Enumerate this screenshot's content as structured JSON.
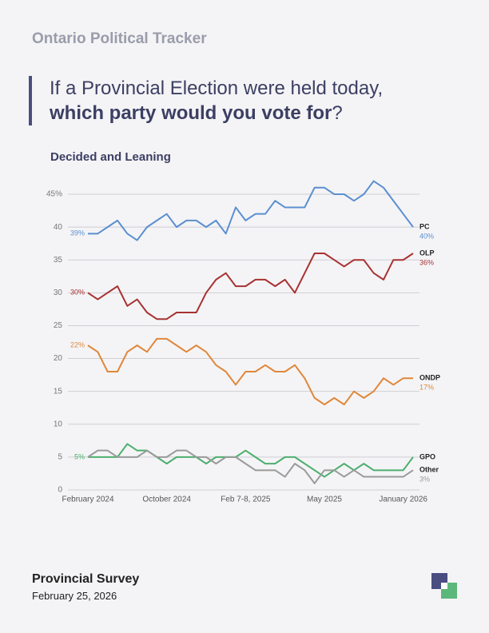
{
  "header": {
    "title": "Ontario Political Tracker",
    "question": [
      "If a Provincial Election were held today, ",
      "which party would you vote for",
      "?"
    ]
  },
  "chart_data": {
    "type": "line",
    "subtitle": "Decided and Leaning",
    "categories": [
      "February 2024",
      null,
      null,
      null,
      null,
      null,
      null,
      null,
      "October 2024",
      null,
      null,
      null,
      null,
      null,
      null,
      null,
      "Feb 7-8, 2025",
      null,
      null,
      null,
      null,
      null,
      null,
      null,
      "May 2025",
      null,
      null,
      null,
      null,
      null,
      null,
      null,
      "January 2026",
      null
    ],
    "ylim": [
      0,
      47
    ],
    "yticks": [
      0,
      5,
      10,
      15,
      20,
      25,
      30,
      35,
      40,
      {
        "value": 45,
        "label": "45%"
      }
    ],
    "grid": true,
    "series": [
      {
        "name": "PC",
        "color": "#5b8fd0",
        "values": [
          39,
          39,
          40,
          41,
          39,
          38,
          40,
          41,
          42,
          40,
          41,
          41,
          40,
          41,
          39,
          43,
          41,
          42,
          42,
          44,
          43,
          43,
          43,
          46,
          46,
          45,
          45,
          44,
          45,
          47,
          46,
          44,
          42,
          40
        ],
        "value_labels": [
          "39%",
          null,
          null,
          null,
          null,
          null,
          null,
          null,
          null,
          null,
          null,
          null,
          null,
          null,
          null,
          null,
          null,
          null,
          null,
          null,
          null,
          null,
          null,
          null,
          null,
          null,
          null,
          null,
          null,
          null,
          null,
          null,
          null,
          "40%"
        ]
      },
      {
        "name": "OLP",
        "color": "#a83232",
        "values": [
          30,
          29,
          30,
          31,
          28,
          29,
          27,
          26,
          26,
          27,
          27,
          27,
          30,
          32,
          33,
          31,
          31,
          32,
          32,
          31,
          32,
          30,
          33,
          36,
          36,
          35,
          34,
          35,
          35,
          33,
          32,
          35,
          35,
          36
        ],
        "value_labels": [
          "30%",
          null,
          null,
          null,
          null,
          null,
          null,
          null,
          null,
          null,
          null,
          null,
          null,
          null,
          null,
          null,
          null,
          null,
          null,
          null,
          null,
          null,
          null,
          null,
          null,
          null,
          null,
          null,
          null,
          null,
          null,
          null,
          null,
          "36%"
        ]
      },
      {
        "name": "ONDP",
        "color": "#e0873a",
        "values": [
          22,
          21,
          18,
          18,
          21,
          22,
          21,
          23,
          23,
          22,
          21,
          22,
          21,
          19,
          18,
          16,
          18,
          18,
          19,
          18,
          18,
          19,
          17,
          14,
          13,
          14,
          13,
          15,
          14,
          15,
          17,
          16,
          17,
          17
        ],
        "value_labels": [
          "22%",
          null,
          null,
          null,
          null,
          null,
          null,
          null,
          null,
          null,
          null,
          null,
          null,
          null,
          null,
          null,
          null,
          null,
          null,
          null,
          null,
          null,
          null,
          null,
          null,
          null,
          null,
          null,
          null,
          null,
          null,
          null,
          null,
          "17%"
        ]
      },
      {
        "name": "GPO",
        "color": "#4caf6e",
        "values": [
          5,
          5,
          5,
          5,
          7,
          6,
          6,
          5,
          4,
          5,
          5,
          5,
          4,
          5,
          5,
          5,
          6,
          5,
          4,
          4,
          5,
          5,
          4,
          3,
          2,
          3,
          4,
          3,
          4,
          3,
          3,
          3,
          3,
          5
        ],
        "value_labels": [
          "5%",
          null,
          null,
          null,
          null,
          null,
          null,
          null,
          null,
          null,
          null,
          null,
          null,
          null,
          null,
          null,
          null,
          null,
          null,
          null,
          null,
          null,
          null,
          null,
          null,
          null,
          null,
          null,
          null,
          null,
          null,
          null,
          null,
          null
        ]
      },
      {
        "name": "Other",
        "color": "#9a9a9a",
        "values": [
          5,
          6,
          6,
          5,
          5,
          5,
          6,
          5,
          5,
          6,
          6,
          5,
          5,
          4,
          5,
          5,
          4,
          3,
          3,
          3,
          2,
          4,
          3,
          1,
          3,
          3,
          2,
          3,
          2,
          2,
          2,
          2,
          2,
          3
        ],
        "value_labels": [
          null,
          null,
          null,
          null,
          null,
          null,
          null,
          null,
          null,
          null,
          null,
          null,
          null,
          null,
          null,
          null,
          null,
          null,
          null,
          null,
          null,
          null,
          null,
          null,
          null,
          null,
          null,
          null,
          null,
          null,
          null,
          null,
          null,
          "3%"
        ]
      }
    ]
  },
  "footer": {
    "title": "Provincial Survey",
    "date": "February 25, 2026"
  }
}
